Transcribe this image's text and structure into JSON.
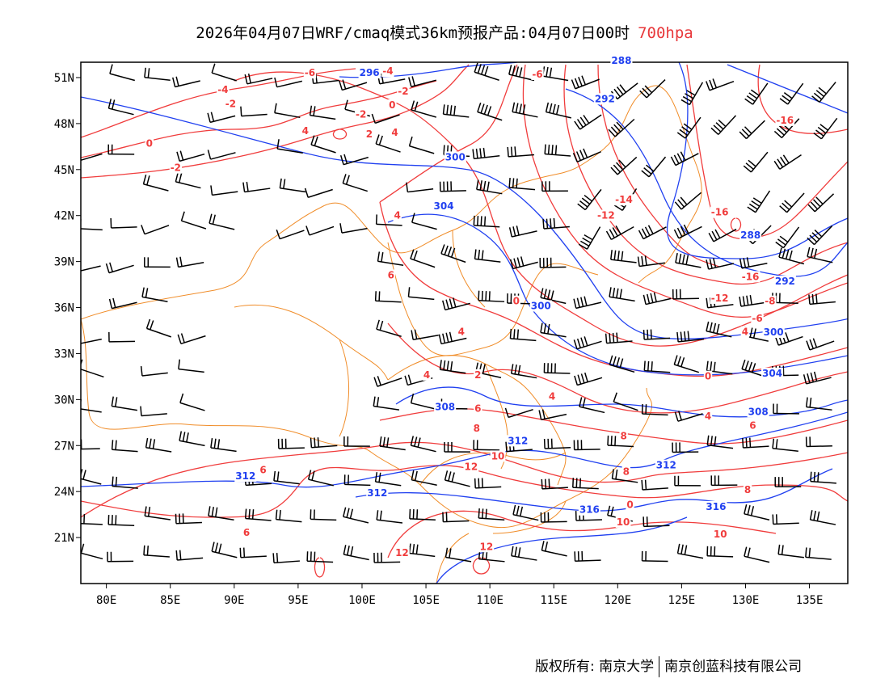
{
  "title": {
    "text": "2026年04月07日WRF/cmaq模式36km预报产品:04月07日00时",
    "level": "700hpa"
  },
  "colors": {
    "temperature": "#f03c3c",
    "height": "#2040f0",
    "border": "#f08c28",
    "wind": "#000000",
    "level": "#e8383b"
  },
  "map": {
    "lon_range": [
      78,
      138
    ],
    "lat_range": [
      18,
      52
    ],
    "lon_ticks": [
      "80E",
      "85E",
      "90E",
      "95E",
      "100E",
      "105E",
      "110E",
      "115E",
      "120E",
      "125E",
      "130E",
      "135E"
    ],
    "lon_values": [
      80,
      85,
      90,
      95,
      100,
      105,
      110,
      115,
      120,
      125,
      130,
      135
    ],
    "lat_ticks": [
      "51N",
      "48N",
      "45N",
      "42N",
      "39N",
      "36N",
      "33N",
      "30N",
      "27N",
      "24N",
      "21N"
    ],
    "lat_values": [
      51,
      48,
      45,
      42,
      39,
      36,
      33,
      30,
      27,
      24,
      21
    ],
    "height_labels": [
      {
        "text": "288",
        "lon": 119.5,
        "lat": 51.9
      },
      {
        "text": "296",
        "lon": 100.8,
        "lat": 51.1
      },
      {
        "text": "292",
        "lon": 118.2,
        "lat": 49.4
      },
      {
        "text": "300",
        "lon": 106.5,
        "lat": 45.6
      },
      {
        "text": "304",
        "lon": 105.6,
        "lat": 42.4
      },
      {
        "text": "288",
        "lon": 129.6,
        "lat": 40.5
      },
      {
        "text": "292",
        "lon": 132.3,
        "lat": 37.5
      },
      {
        "text": "300",
        "lon": 113.2,
        "lat": 35.9
      },
      {
        "text": "300",
        "lon": 131.4,
        "lat": 34.5
      },
      {
        "text": "304",
        "lon": 131.3,
        "lat": 31.5
      },
      {
        "text": "308",
        "lon": 105.7,
        "lat": 29.3
      },
      {
        "text": "308",
        "lon": 130.2,
        "lat": 29.0
      },
      {
        "text": "312",
        "lon": 111.4,
        "lat": 27.1
      },
      {
        "text": "312",
        "lon": 90.6,
        "lat": 24.8
      },
      {
        "text": "312",
        "lon": 100.4,
        "lat": 23.7
      },
      {
        "text": "312",
        "lon": 123.0,
        "lat": 25.5
      },
      {
        "text": "316",
        "lon": 117.0,
        "lat": 22.6
      },
      {
        "text": "316",
        "lon": 126.9,
        "lat": 22.8
      }
    ],
    "temp_labels": [
      {
        "text": "-6",
        "lon": 95.5,
        "lat": 51.1
      },
      {
        "text": "-4",
        "lon": 88.7,
        "lat": 50.0
      },
      {
        "text": "-2",
        "lon": 89.3,
        "lat": 49.4
      },
      {
        "text": "-4",
        "lon": 101.6,
        "lat": 51.2
      },
      {
        "text": "-2",
        "lon": 102.8,
        "lat": 49.9
      },
      {
        "text": "-6",
        "lon": 113.3,
        "lat": 51.0
      },
      {
        "text": "0",
        "lon": 102.1,
        "lat": 49.0
      },
      {
        "text": "-2",
        "lon": 99.5,
        "lat": 48.4
      },
      {
        "text": "4",
        "lon": 95.3,
        "lat": 47.3
      },
      {
        "text": "2",
        "lon": 100.3,
        "lat": 47.1
      },
      {
        "text": "4",
        "lon": 102.3,
        "lat": 47.2
      },
      {
        "text": "0",
        "lon": 83.1,
        "lat": 46.5
      },
      {
        "text": "-2",
        "lon": 85.0,
        "lat": 44.9
      },
      {
        "text": "-16",
        "lon": 132.4,
        "lat": 48.0
      },
      {
        "text": "4",
        "lon": 102.5,
        "lat": 41.8
      },
      {
        "text": "-12",
        "lon": 118.4,
        "lat": 41.8
      },
      {
        "text": "-14",
        "lon": 119.8,
        "lat": 42.5
      },
      {
        "text": "-16",
        "lon": 127.3,
        "lat": 42.0
      },
      {
        "text": "6",
        "lon": 102.0,
        "lat": 37.9
      },
      {
        "text": "-16",
        "lon": 129.7,
        "lat": 37.8
      },
      {
        "text": "-12",
        "lon": 127.3,
        "lat": 36.4
      },
      {
        "text": "-8",
        "lon": 131.5,
        "lat": 36.2
      },
      {
        "text": "-6",
        "lon": 130.5,
        "lat": 35.4
      },
      {
        "text": "4",
        "lon": 107.5,
        "lat": 34.2
      },
      {
        "text": "0",
        "lon": 111.8,
        "lat": 36.2
      },
      {
        "text": "4",
        "lon": 129.7,
        "lat": 34.2
      },
      {
        "text": "0",
        "lon": 126.8,
        "lat": 31.3
      },
      {
        "text": "4",
        "lon": 104.8,
        "lat": 31.4
      },
      {
        "text": "2",
        "lon": 108.8,
        "lat": 31.4
      },
      {
        "text": "4",
        "lon": 114.6,
        "lat": 30.0
      },
      {
        "text": "6",
        "lon": 108.8,
        "lat": 29.2
      },
      {
        "text": "4",
        "lon": 126.8,
        "lat": 28.7
      },
      {
        "text": "8",
        "lon": 108.7,
        "lat": 27.9
      },
      {
        "text": "6",
        "lon": 130.3,
        "lat": 28.1
      },
      {
        "text": "8",
        "lon": 120.2,
        "lat": 27.4
      },
      {
        "text": "6",
        "lon": 92.0,
        "lat": 25.2
      },
      {
        "text": "12",
        "lon": 108.0,
        "lat": 25.4
      },
      {
        "text": "10",
        "lon": 110.1,
        "lat": 26.1
      },
      {
        "text": "8",
        "lon": 120.4,
        "lat": 25.1
      },
      {
        "text": "8",
        "lon": 129.9,
        "lat": 23.9
      },
      {
        "text": "10",
        "lon": 119.9,
        "lat": 21.8
      },
      {
        "text": "0",
        "lon": 120.7,
        "lat": 22.6
      },
      {
        "text": "6",
        "lon": 90.7,
        "lat": 21.1
      },
      {
        "text": "10",
        "lon": 127.5,
        "lat": 21.0
      },
      {
        "text": "12",
        "lon": 102.6,
        "lat": 19.8
      },
      {
        "text": "12",
        "lon": 109.2,
        "lat": 20.2
      }
    ]
  },
  "footer": {
    "copyright": "版权所有: 南京大学",
    "company": "南京创蓝科技有限公司"
  }
}
